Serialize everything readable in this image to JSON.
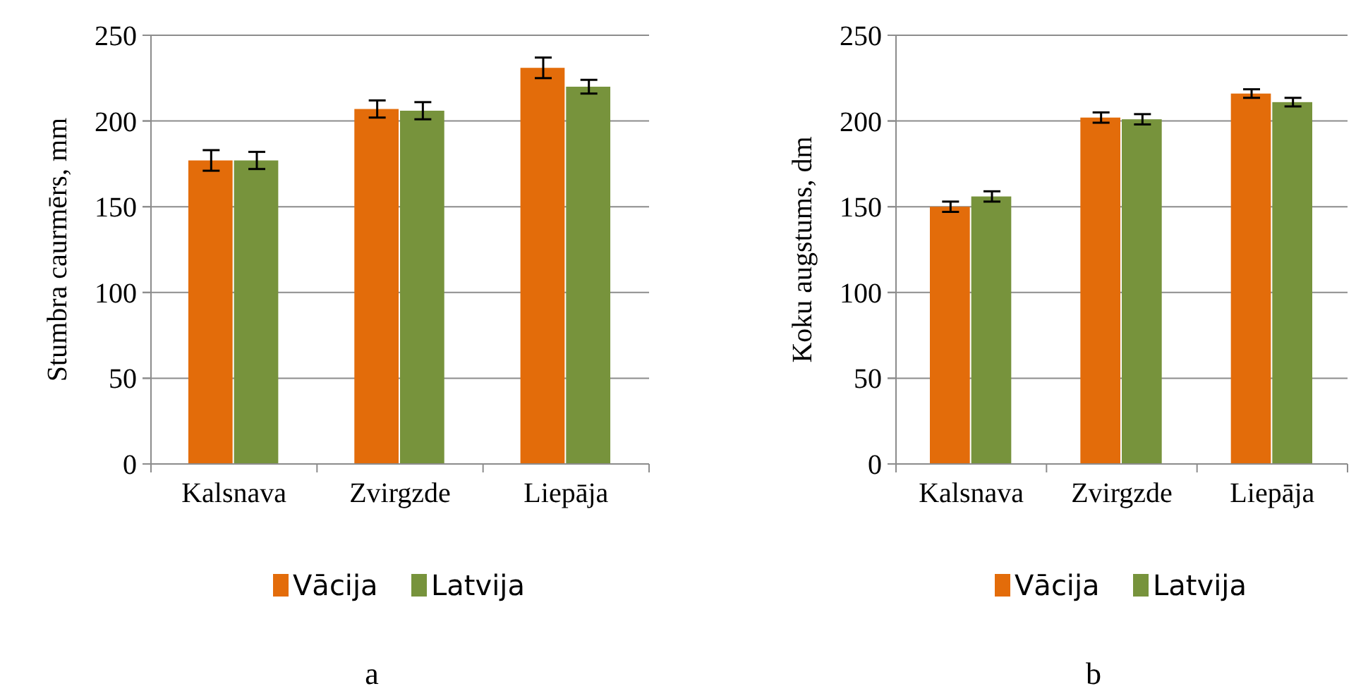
{
  "chart_data": [
    {
      "type": "bar",
      "ylabel": "Stumbra caurmērs, mm",
      "categories": [
        "Kalsnava",
        "Zvirgzde",
        "Liepāja"
      ],
      "series": [
        {
          "name": "Vācija",
          "color": "#e36c0a",
          "values": [
            177,
            207,
            231
          ],
          "errors": [
            6,
            5,
            6
          ]
        },
        {
          "name": "Latvija",
          "color": "#77933c",
          "values": [
            177,
            206,
            220
          ],
          "errors": [
            5,
            5,
            4
          ]
        }
      ],
      "ylim": [
        0,
        250
      ],
      "yticks": [
        0,
        50,
        100,
        150,
        200,
        250
      ],
      "grid": "y",
      "legend": "bottom",
      "annotations": [
        "a"
      ]
    },
    {
      "type": "bar",
      "ylabel": "Koku augstums, dm",
      "categories": [
        "Kalsnava",
        "Zvirgzde",
        "Liepāja"
      ],
      "series": [
        {
          "name": "Vācija",
          "color": "#e36c0a",
          "values": [
            150,
            202,
            216
          ],
          "errors": [
            3,
            3,
            2.5
          ]
        },
        {
          "name": "Latvija",
          "color": "#77933c",
          "values": [
            156,
            201,
            211
          ],
          "errors": [
            3,
            3,
            2.5
          ]
        }
      ],
      "ylim": [
        0,
        250
      ],
      "yticks": [
        0,
        50,
        100,
        150,
        200,
        250
      ],
      "grid": "y",
      "legend": "bottom",
      "annotations": [
        "b"
      ]
    }
  ]
}
